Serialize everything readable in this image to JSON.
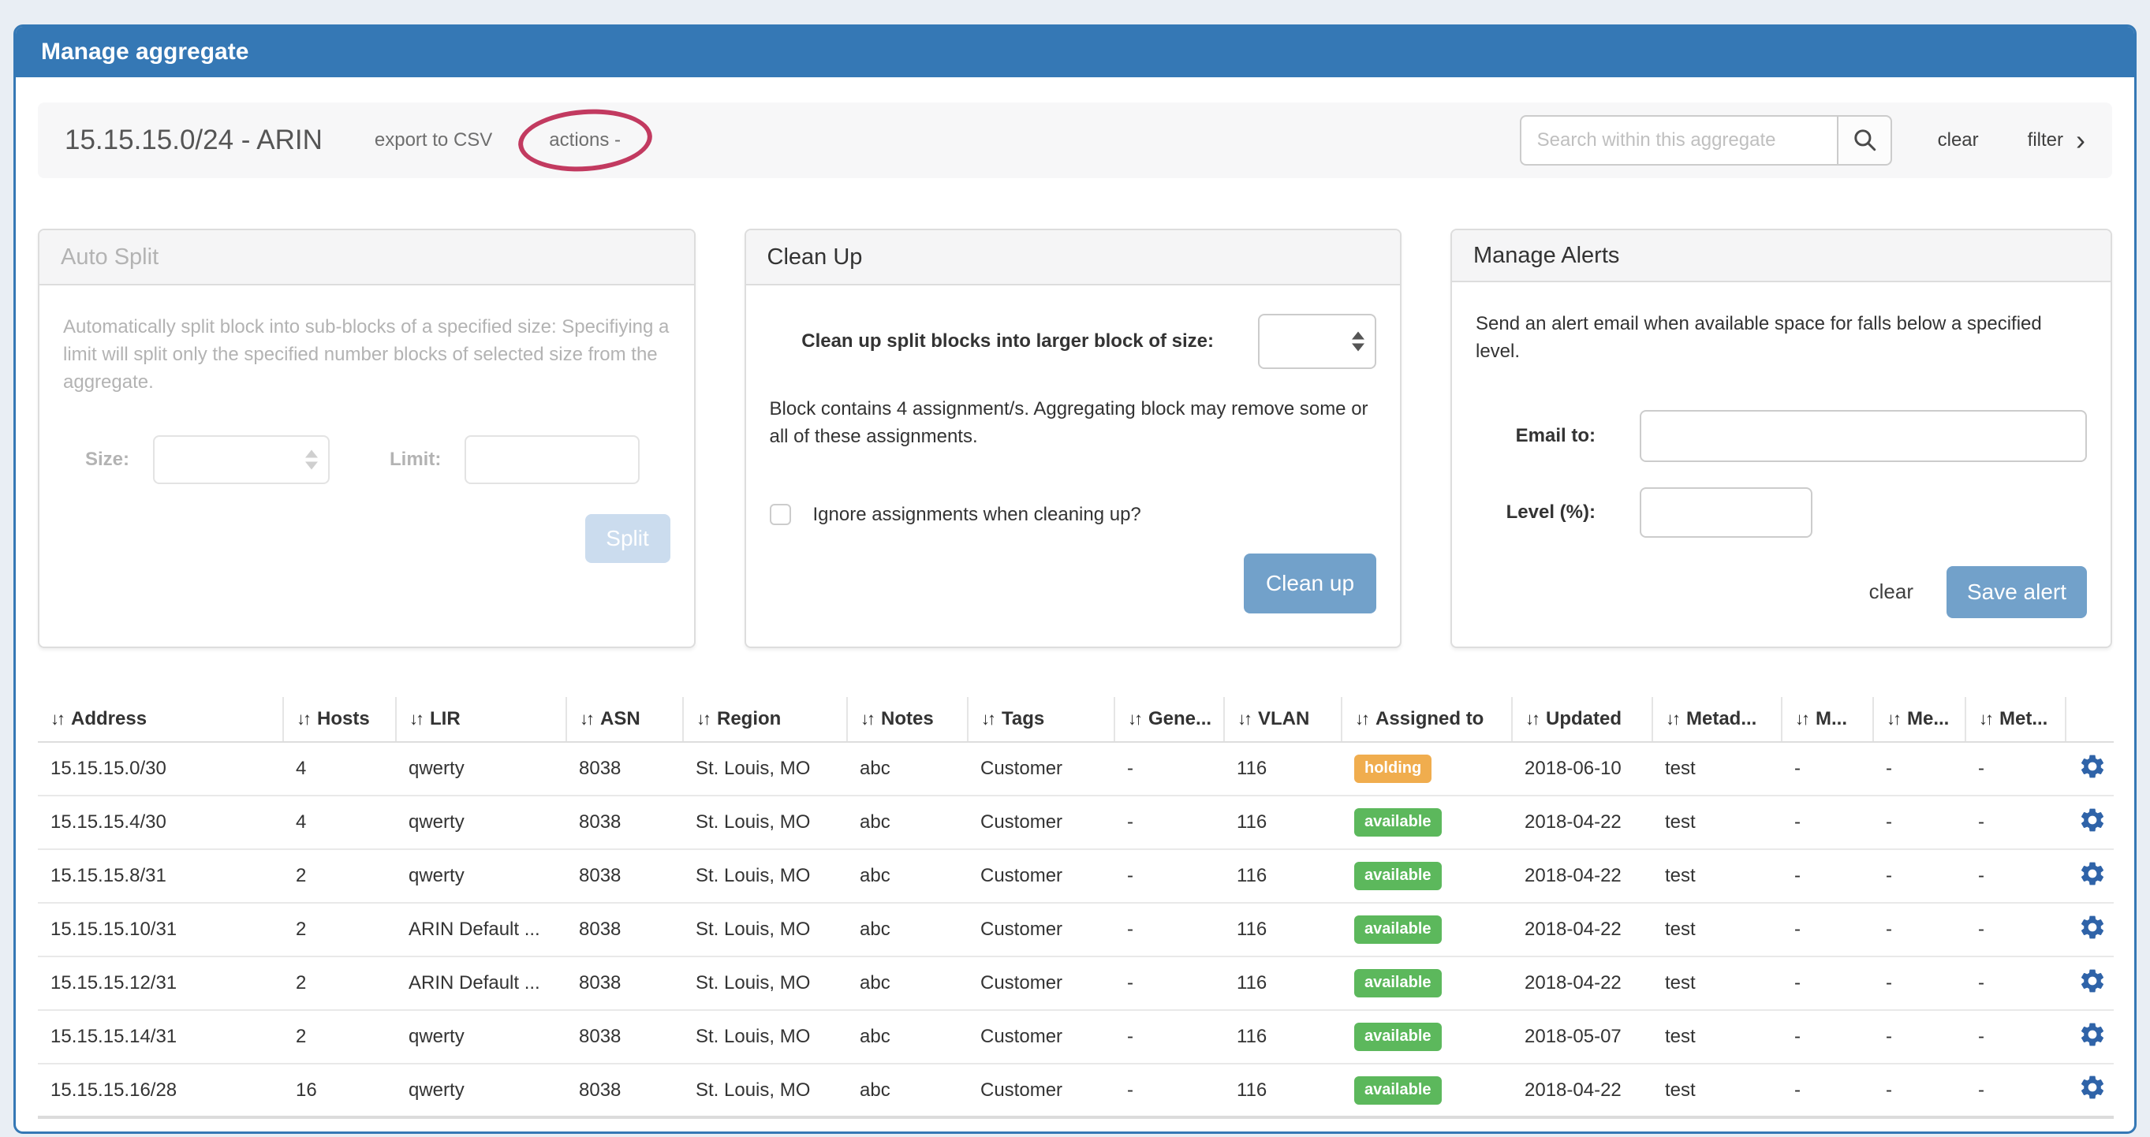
{
  "window": {
    "title": "Manage aggregate"
  },
  "toolbar": {
    "aggregate_title": "15.15.15.0/24 - ARIN",
    "export_csv_label": "export to CSV",
    "actions_label": "actions -",
    "search_placeholder": "Search within this aggregate",
    "clear_label": "clear",
    "filter_label": "filter",
    "filter_chevron": "›"
  },
  "auto_split": {
    "title": "Auto Split",
    "description": "Automatically split block into sub-blocks of a specified size: Specifiying a limit will split only the specified number blocks of selected size from the aggregate.",
    "size_label": "Size:",
    "limit_label": "Limit:",
    "size_value": "",
    "limit_value": "",
    "split_button": "Split"
  },
  "clean_up": {
    "title": "Clean Up",
    "size_label": "Clean up split blocks into larger block of size:",
    "size_value": "",
    "info": "Block contains 4 assignment/s. Aggregating block may remove some or all of these assignments.",
    "checkbox_label": "Ignore assignments when cleaning up?",
    "checkbox_checked": false,
    "button": "Clean up"
  },
  "manage_alerts": {
    "title": "Manage Alerts",
    "description": "Send an alert email when available space for falls below a specified level.",
    "email_label": "Email to:",
    "email_value": "",
    "level_label": "Level (%):",
    "level_value": "",
    "clear_label": "clear",
    "save_button": "Save alert"
  },
  "icons": {
    "sort": "↓↑",
    "gear": "gear-cog",
    "search": "magnifier",
    "select_stepper": "up-down-triangles"
  },
  "colors": {
    "header_blue": "#3578b5",
    "page_background": "#e9eef4",
    "button_blue": "#72a1ca",
    "split_button_disabled": "#cbdcee",
    "annotation_ellipse": "#c23a60",
    "gear_icon": "#2f63a8",
    "status": {
      "holding": "#f0ad4e",
      "available": "#5cb85c"
    }
  },
  "table": {
    "columns": [
      "Address",
      "Hosts",
      "LIR",
      "ASN",
      "Region",
      "Notes",
      "Tags",
      "Gene...",
      "VLAN",
      "Assigned to",
      "Updated",
      "Metad...",
      "M...",
      "Me...",
      "Met..."
    ],
    "rows": [
      {
        "address": "15.15.15.0/30",
        "hosts": "4",
        "lir": "qwerty",
        "asn": "8038",
        "region": "St. Louis, MO",
        "notes": "abc",
        "tags": "Customer",
        "gene": "-",
        "vlan": "116",
        "assigned_to": "holding",
        "updated": "2018-06-10",
        "metad": "test",
        "m": "-",
        "me": "-",
        "met": "-"
      },
      {
        "address": "15.15.15.4/30",
        "hosts": "4",
        "lir": "qwerty",
        "asn": "8038",
        "region": "St. Louis, MO",
        "notes": "abc",
        "tags": "Customer",
        "gene": "-",
        "vlan": "116",
        "assigned_to": "available",
        "updated": "2018-04-22",
        "metad": "test",
        "m": "-",
        "me": "-",
        "met": "-"
      },
      {
        "address": "15.15.15.8/31",
        "hosts": "2",
        "lir": "qwerty",
        "asn": "8038",
        "region": "St. Louis, MO",
        "notes": "abc",
        "tags": "Customer",
        "gene": "-",
        "vlan": "116",
        "assigned_to": "available",
        "updated": "2018-04-22",
        "metad": "test",
        "m": "-",
        "me": "-",
        "met": "-"
      },
      {
        "address": "15.15.15.10/31",
        "hosts": "2",
        "lir": "ARIN Default ...",
        "asn": "8038",
        "region": "St. Louis, MO",
        "notes": "abc",
        "tags": "Customer",
        "gene": "-",
        "vlan": "116",
        "assigned_to": "available",
        "updated": "2018-04-22",
        "metad": "test",
        "m": "-",
        "me": "-",
        "met": "-"
      },
      {
        "address": "15.15.15.12/31",
        "hosts": "2",
        "lir": "ARIN Default ...",
        "asn": "8038",
        "region": "St. Louis, MO",
        "notes": "abc",
        "tags": "Customer",
        "gene": "-",
        "vlan": "116",
        "assigned_to": "available",
        "updated": "2018-04-22",
        "metad": "test",
        "m": "-",
        "me": "-",
        "met": "-"
      },
      {
        "address": "15.15.15.14/31",
        "hosts": "2",
        "lir": "qwerty",
        "asn": "8038",
        "region": "St. Louis, MO",
        "notes": "abc",
        "tags": "Customer",
        "gene": "-",
        "vlan": "116",
        "assigned_to": "available",
        "updated": "2018-05-07",
        "metad": "test",
        "m": "-",
        "me": "-",
        "met": "-"
      },
      {
        "address": "15.15.15.16/28",
        "hosts": "16",
        "lir": "qwerty",
        "asn": "8038",
        "region": "St. Louis, MO",
        "notes": "abc",
        "tags": "Customer",
        "gene": "-",
        "vlan": "116",
        "assigned_to": "available",
        "updated": "2018-04-22",
        "metad": "test",
        "m": "-",
        "me": "-",
        "met": "-"
      }
    ]
  }
}
